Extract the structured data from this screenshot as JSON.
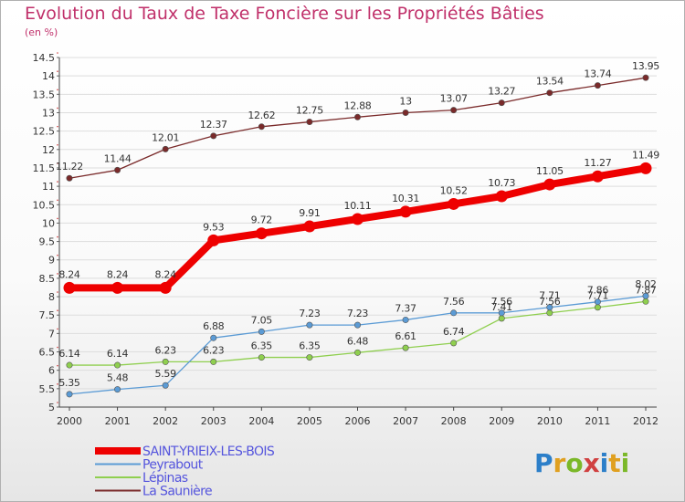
{
  "header": {
    "title": "Evolution du Taux de Taxe Foncière sur les Propriétés Bâties",
    "unit": "(en %)"
  },
  "logo": {
    "text": "Proxiti",
    "letters": [
      "P",
      "r",
      "o",
      "x",
      "i",
      "t",
      "i"
    ]
  },
  "chart_data": {
    "type": "line",
    "title": "Evolution du Taux de Taxe Foncière sur les Propriétés Bâties",
    "ylabel": "(en %)",
    "xlabel": "",
    "ylim": [
      5,
      14.5
    ],
    "ytick_step": 0.5,
    "categories": [
      "2000",
      "2001",
      "2002",
      "2003",
      "2004",
      "2005",
      "2006",
      "2007",
      "2008",
      "2009",
      "2010",
      "2011",
      "2012"
    ],
    "series": [
      {
        "name": "La Saunière",
        "color": "#7a2a2a",
        "style": "thin",
        "values": [
          11.22,
          11.44,
          12.01,
          12.37,
          12.62,
          12.75,
          12.88,
          13,
          13.07,
          13.27,
          13.54,
          13.74,
          13.95
        ],
        "labels": [
          "11.22",
          "11.44",
          "12.01",
          "12.37",
          "12.62",
          "12.75",
          "12.88",
          "13",
          "13.07",
          "13.27",
          "13.54",
          "13.74",
          "13.95"
        ]
      },
      {
        "name": "Lépinas",
        "color": "#8fcf4f",
        "style": "thin",
        "values": [
          6.14,
          6.14,
          6.23,
          6.23,
          6.35,
          6.35,
          6.48,
          6.61,
          6.74,
          7.41,
          7.56,
          7.71,
          7.87
        ],
        "labels": [
          "6.14",
          "6.14",
          "6.23",
          "6.23",
          "6.35",
          "6.35",
          "6.48",
          "6.61",
          "6.74",
          "7.41",
          "7.56",
          "7.71",
          "7.87"
        ]
      },
      {
        "name": "Peyrabout",
        "color": "#5b9bd5",
        "style": "thin",
        "values": [
          5.35,
          5.48,
          5.59,
          6.88,
          7.05,
          7.23,
          7.23,
          7.37,
          7.56,
          7.56,
          7.71,
          7.86,
          8.02
        ],
        "labels": [
          "5.35",
          "5.48",
          "5.59",
          "6.88",
          "7.05",
          "7.23",
          "7.23",
          "7.37",
          "7.56",
          "7.56",
          "7.71",
          "7.86",
          "8.02"
        ]
      },
      {
        "name": "SAINT-YRIEIX-LES-BOIS",
        "color": "#ee0000",
        "style": "thick",
        "values": [
          8.24,
          8.24,
          8.24,
          9.53,
          9.72,
          9.91,
          10.11,
          10.31,
          10.52,
          10.73,
          11.05,
          11.27,
          11.49
        ],
        "labels": [
          "8.24",
          "8.24",
          "8.24",
          "9.53",
          "9.72",
          "9.91",
          "10.11",
          "10.31",
          "10.52",
          "10.73",
          "11.05",
          "11.27",
          "11.49"
        ]
      }
    ],
    "legend": {
      "position": "bottom-left",
      "order": [
        "SAINT-YRIEIX-LES-BOIS",
        "Peyrabout",
        "Lépinas",
        "La Saunière"
      ]
    }
  }
}
